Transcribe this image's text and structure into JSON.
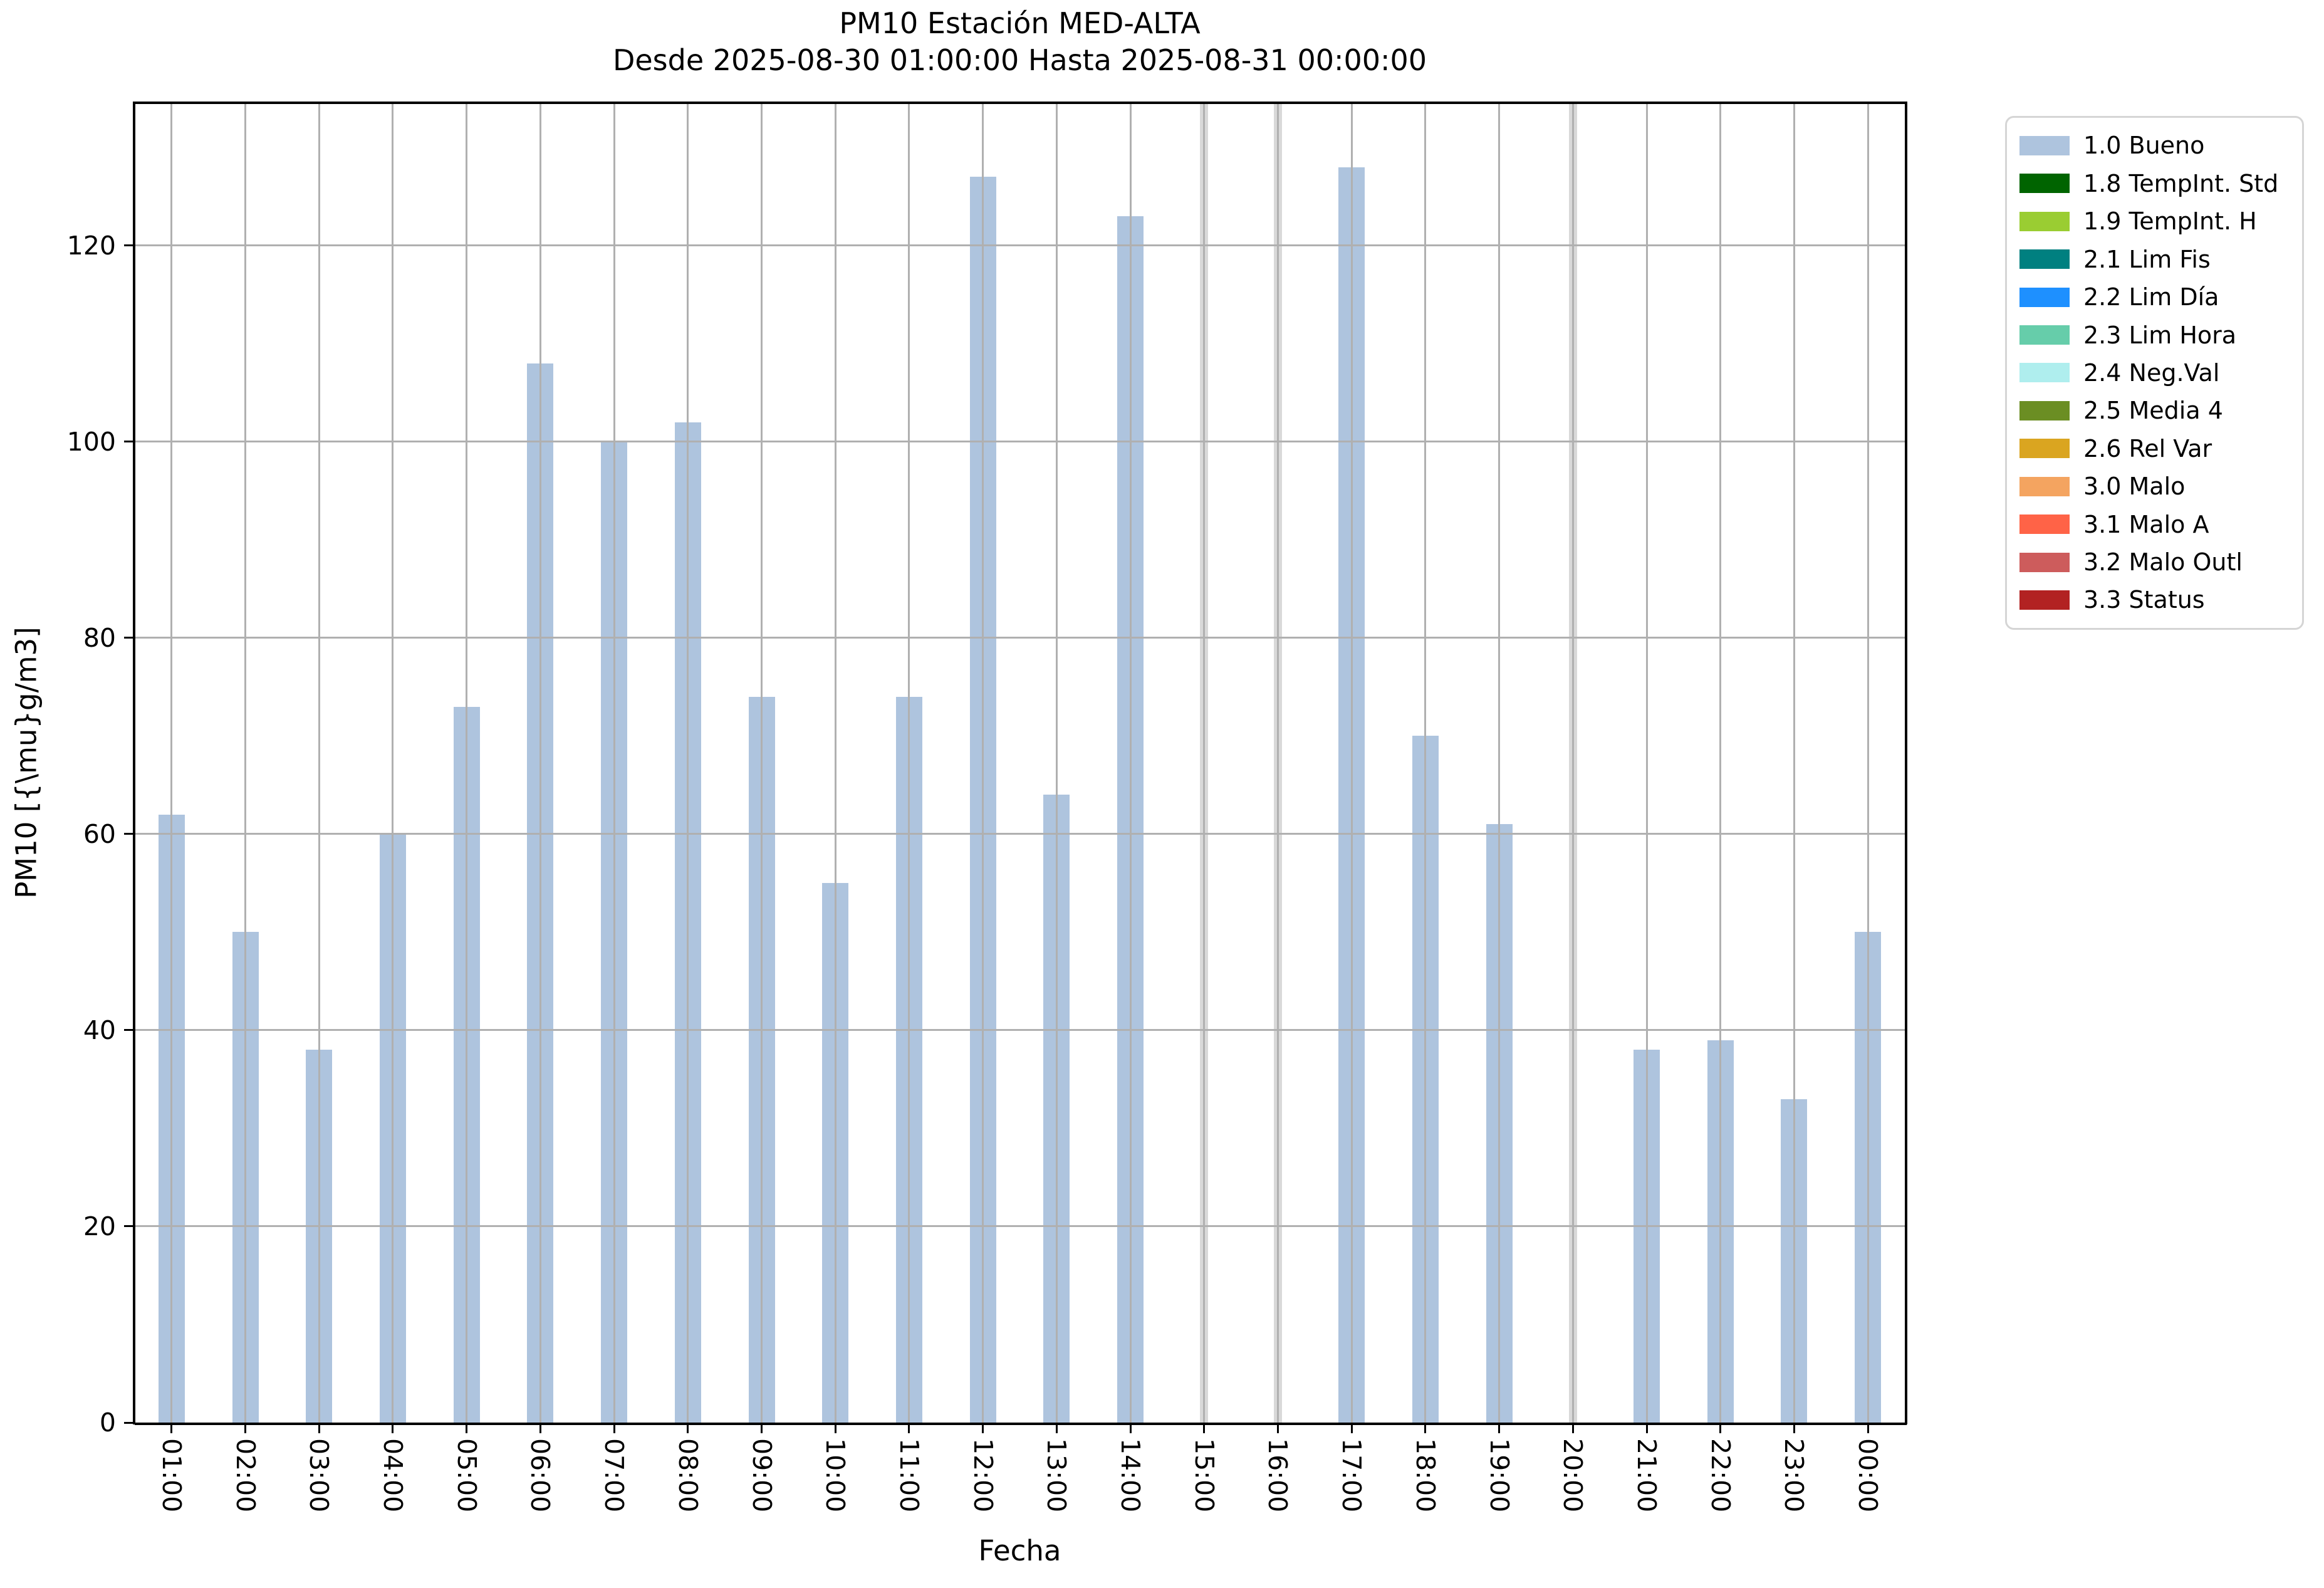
{
  "figure": {
    "title_line1": "PM10 Estación MED-ALTA",
    "title_line2": "Desde 2025-08-30 01:00:00 Hasta 2025-08-31 00:00:00",
    "xlabel": "Fecha",
    "ylabel": "PM10 [{\\mu}g/m3]"
  },
  "chart_data": {
    "type": "bar",
    "title": "PM10 Estación MED-ALTA",
    "subtitle": "Desde 2025-08-30 01:00:00 Hasta 2025-08-31 00:00:00",
    "xlabel": "Fecha",
    "ylabel": "PM10 [{\\mu}g/m3]",
    "categories": [
      "01:00",
      "02:00",
      "03:00",
      "04:00",
      "05:00",
      "06:00",
      "07:00",
      "08:00",
      "09:00",
      "10:00",
      "11:00",
      "12:00",
      "13:00",
      "14:00",
      "15:00",
      "16:00",
      "17:00",
      "18:00",
      "19:00",
      "20:00",
      "21:00",
      "22:00",
      "23:00",
      "00:00"
    ],
    "values": [
      62,
      50,
      38,
      60,
      73,
      108,
      100,
      102,
      74,
      55,
      74,
      127,
      64,
      123,
      null,
      null,
      128,
      70,
      61,
      null,
      38,
      39,
      33,
      50
    ],
    "missing_categories": [
      "15:00",
      "16:00",
      "20:00"
    ],
    "series_name": "1.0 Bueno",
    "bar_color": "#aec4de",
    "missing_bar_color": "#d9d9d9",
    "yticks": [
      0,
      20,
      40,
      60,
      80,
      100,
      120
    ],
    "ylim": [
      0,
      134.5
    ],
    "grid": true,
    "gridline_color": "#b0b0b0",
    "legend_position": "outside upper right"
  },
  "legend": {
    "entries": [
      {
        "label": "1.0 Bueno",
        "color": "#aec4de"
      },
      {
        "label": "1.8 TempInt. Std",
        "color": "#006400"
      },
      {
        "label": "1.9 TempInt. H",
        "color": "#9acd32"
      },
      {
        "label": "2.1 Lim Fis",
        "color": "#008080"
      },
      {
        "label": "2.2 Lim Día",
        "color": "#1e90ff"
      },
      {
        "label": "2.3 Lim Hora",
        "color": "#66cdaa"
      },
      {
        "label": "2.4 Neg.Val",
        "color": "#afeeee"
      },
      {
        "label": "2.5 Media 4",
        "color": "#6b8e23"
      },
      {
        "label": "2.6 Rel Var",
        "color": "#daa520"
      },
      {
        "label": "3.0 Malo",
        "color": "#f4a460"
      },
      {
        "label": "3.1 Malo A",
        "color": "#ff6347"
      },
      {
        "label": "3.2 Malo Outl",
        "color": "#cd5c5c"
      },
      {
        "label": "3.3 Status",
        "color": "#b22222"
      }
    ]
  }
}
